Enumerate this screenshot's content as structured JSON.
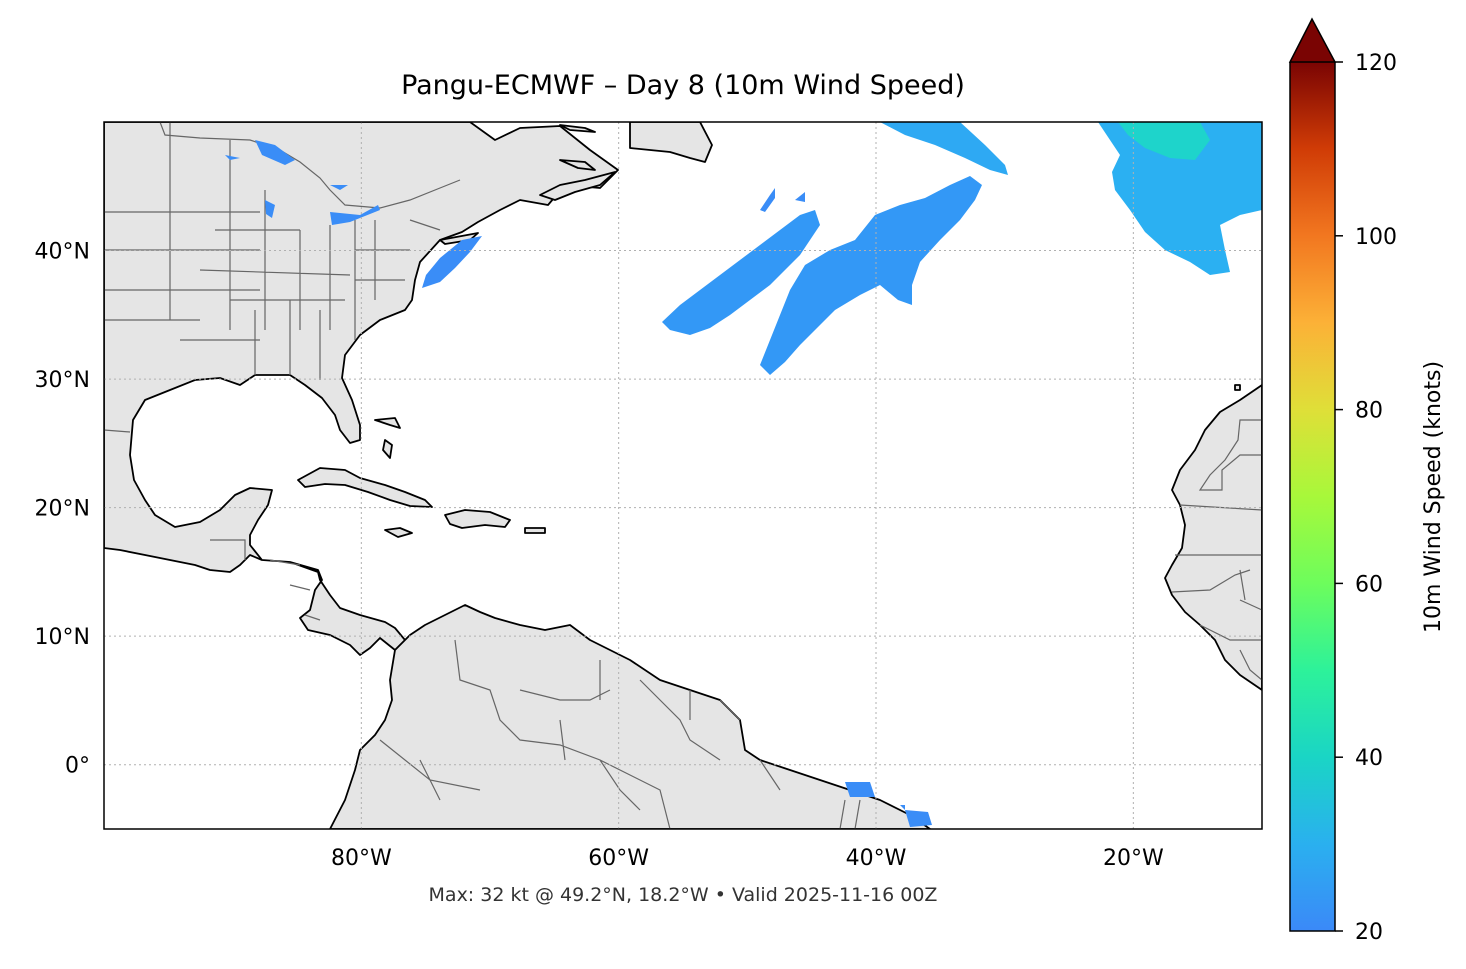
{
  "title": "Pangu-ECMWF – Day 8 (10m Wind Speed)",
  "footer": "Max: 32 kt @ 49.2°N, 18.2°W • Valid 2025-11-16 00Z",
  "map": {
    "extent": {
      "lon_min": -100,
      "lon_max": -10,
      "lat_min": -5,
      "lat_max": 50
    },
    "lon_ticks": [
      {
        "value": -80,
        "label": "80°W"
      },
      {
        "value": -60,
        "label": "60°W"
      },
      {
        "value": -40,
        "label": "40°W"
      },
      {
        "value": -20,
        "label": "20°W"
      }
    ],
    "lat_ticks": [
      {
        "value": 40,
        "label": "40°N"
      },
      {
        "value": 30,
        "label": "30°N"
      },
      {
        "value": 20,
        "label": "20°N"
      },
      {
        "value": 10,
        "label": "10°N"
      },
      {
        "value": 0,
        "label": "0°"
      }
    ],
    "land_color": "#e5e5e5",
    "coast_color": "#000000",
    "border_color": "#666666",
    "grid": true
  },
  "colorbar": {
    "label": "10m Wind Speed (knots)",
    "min": 20,
    "max": 120,
    "extend": "max",
    "ticks": [
      {
        "value": 20,
        "label": "20"
      },
      {
        "value": 40,
        "label": "40"
      },
      {
        "value": 60,
        "label": "60"
      },
      {
        "value": 80,
        "label": "80"
      },
      {
        "value": 100,
        "label": "100"
      },
      {
        "value": 120,
        "label": "120"
      }
    ],
    "colormap": [
      "#30123b",
      "#4662d7",
      "#36aaf9",
      "#1ae4b6",
      "#72fe5e",
      "#c8ef34",
      "#faba39",
      "#f66b19",
      "#ca2a04",
      "#7a0403"
    ]
  },
  "chart_data": {
    "type": "heatmap",
    "variable": "10m Wind Speed (knots)",
    "max_value": 32,
    "max_location": {
      "lat": 49.2,
      "lon": -18.2
    },
    "valid": "2025-11-16 00Z",
    "regions": [
      {
        "id": "nw-atlantic-band",
        "approx_speed": 25
      },
      {
        "id": "central-atlantic-band",
        "approx_speed": 26
      },
      {
        "id": "north-band",
        "approx_speed": 26
      },
      {
        "id": "ne-atlantic",
        "approx_speed": 30
      },
      {
        "id": "us-east-coast",
        "approx_speed": 22
      },
      {
        "id": "great-lakes",
        "approx_speed": 21
      },
      {
        "id": "brazil-coast",
        "approx_speed": 21
      }
    ]
  }
}
